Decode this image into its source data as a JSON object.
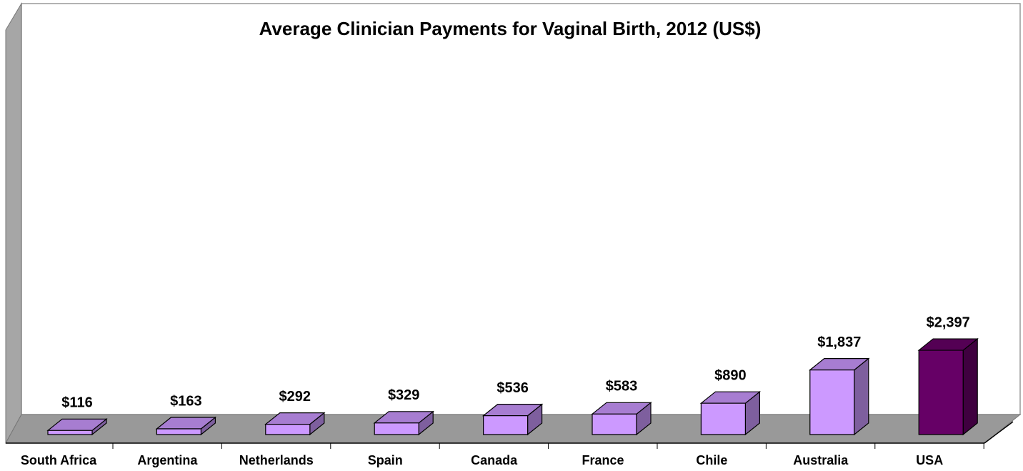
{
  "chart_data": {
    "type": "bar3d",
    "title": "Average Clinician Payments for Vaginal Birth, 2012 (US$)",
    "categories": [
      "South Africa",
      "Argentina",
      "Netherlands",
      "Spain",
      "Canada",
      "France",
      "Chile",
      "Australia",
      "USA"
    ],
    "values": [
      116,
      163,
      292,
      329,
      536,
      583,
      890,
      1837,
      2397
    ],
    "value_labels": [
      "$116",
      "$163",
      "$292",
      "$329",
      "$536",
      "$583",
      "$890",
      "$1,837",
      "$2,397"
    ],
    "colors": [
      "#cc99ff",
      "#cc99ff",
      "#cc99ff",
      "#cc99ff",
      "#cc99ff",
      "#cc99ff",
      "#cc99ff",
      "#cc99ff",
      "#660066"
    ]
  }
}
